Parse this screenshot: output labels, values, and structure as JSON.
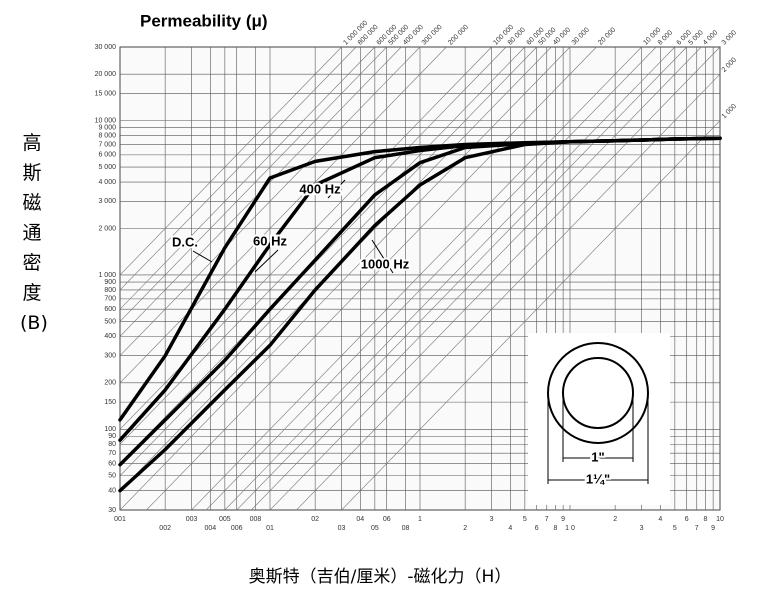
{
  "chart_data": {
    "type": "line",
    "log_x": true,
    "log_y": true,
    "grid": true,
    "title": "Permeability (μ)",
    "x_label": "奥斯特（吉伯/厘米）-磁化力（H）",
    "y_label": "高斯 磁通密度 (B)",
    "x": [
      0.001,
      0.002,
      0.005,
      0.01,
      0.02,
      0.05,
      0.1,
      0.2,
      0.5,
      1,
      2,
      5,
      10
    ],
    "series": [
      {
        "name": "D.C.",
        "color": "#000000",
        "values": [
          115,
          300,
          1500,
          4250,
          5440,
          6300,
          6700,
          7000,
          7200,
          7300,
          7400,
          7600,
          7700
        ]
      },
      {
        "name": "60 Hz",
        "color": "#000000",
        "values": [
          85,
          180,
          600,
          1570,
          3830,
          5750,
          6400,
          6900,
          7150,
          7300,
          7400,
          7600,
          7700
        ]
      },
      {
        "name": "400 Hz",
        "color": "#000000",
        "values": [
          59,
          115,
          280,
          600,
          1250,
          3300,
          5340,
          6700,
          7100,
          7300,
          7400,
          7600,
          7700
        ]
      },
      {
        "name": "1000 Hz",
        "color": "#000000",
        "values": [
          40,
          74,
          180,
          350,
          800,
          2090,
          3830,
          5750,
          7000,
          7300,
          7400,
          7600,
          7700
        ]
      }
    ],
    "xlim": [
      0.001,
      10
    ],
    "ylim": [
      30,
      30000
    ],
    "xticks": [
      {
        "value": 0.001,
        "label": "001"
      },
      {
        "value": 0.002,
        "label": "002"
      },
      {
        "value": 0.003,
        "label": "003"
      },
      {
        "value": 0.004,
        "label": "004"
      },
      {
        "value": 0.005,
        "label": "005"
      },
      {
        "value": 0.006,
        "label": "006"
      },
      {
        "value": 0.008,
        "label": "008"
      },
      {
        "value": 0.01,
        "label": "01"
      },
      {
        "value": 0.02,
        "label": "02"
      },
      {
        "value": 0.03,
        "label": "03"
      },
      {
        "value": 0.04,
        "label": "04"
      },
      {
        "value": 0.05,
        "label": "05"
      },
      {
        "value": 0.06,
        "label": "06"
      },
      {
        "value": 0.08,
        "label": "08"
      },
      {
        "value": 0.1,
        "label": "1"
      },
      {
        "value": 0.2,
        "label": "2"
      },
      {
        "value": 0.3,
        "label": "3"
      },
      {
        "value": 0.4,
        "label": "4"
      },
      {
        "value": 0.5,
        "label": "5"
      },
      {
        "value": 0.6,
        "label": "6"
      },
      {
        "value": 0.7,
        "label": "7"
      },
      {
        "value": 0.8,
        "label": "8"
      },
      {
        "value": 0.9,
        "label": "9"
      },
      {
        "value": 1,
        "label": "1 0"
      },
      2,
      3,
      4,
      5,
      6,
      7,
      8,
      9,
      10
    ],
    "yticks": [
      30,
      40,
      50,
      60,
      70,
      80,
      90,
      100,
      150,
      200,
      300,
      400,
      500,
      600,
      700,
      800,
      900,
      {
        "value": 1000,
        "label": "1 000"
      },
      {
        "value": 2000,
        "label": "2 000"
      },
      {
        "value": 3000,
        "label": "3 000"
      },
      {
        "value": 4000,
        "label": "4 000"
      },
      {
        "value": 5000,
        "label": "5 000"
      },
      {
        "value": 6000,
        "label": "6 000"
      },
      {
        "value": 7000,
        "label": "7 000"
      },
      {
        "value": 8000,
        "label": "8 000"
      },
      {
        "value": 9000,
        "label": "9 000"
      },
      {
        "value": 10000,
        "label": "10 000"
      },
      {
        "value": 15000,
        "label": "15 000"
      },
      {
        "value": 20000,
        "label": "20 000"
      },
      {
        "value": 30000,
        "label": "30 000"
      }
    ],
    "permeability_lines": [
      {
        "value": 1000000,
        "label": "1 000 000"
      },
      {
        "value": 800000,
        "label": "800 000"
      },
      {
        "value": 600000,
        "label": "600 000"
      },
      {
        "value": 500000,
        "label": "500 000"
      },
      {
        "value": 400000,
        "label": "400 000"
      },
      {
        "value": 300000,
        "label": "300 000"
      },
      {
        "value": 200000,
        "label": "200 000"
      },
      {
        "value": 100000,
        "label": "100 000"
      },
      {
        "value": 80000,
        "label": "80 000"
      },
      {
        "value": 60000,
        "label": "60 000"
      },
      {
        "value": 50000,
        "label": "50 000"
      },
      {
        "value": 40000,
        "label": "40 000"
      },
      {
        "value": 30000,
        "label": "30 000"
      },
      {
        "value": 20000,
        "label": "20 000"
      },
      {
        "value": 10000,
        "label": "10 000"
      },
      {
        "value": 8000,
        "label": "8 000"
      },
      {
        "value": 6000,
        "label": "6 000"
      },
      {
        "value": 5000,
        "label": "5 000"
      },
      {
        "value": 4000,
        "label": "4 000"
      },
      {
        "value": 3000,
        "label": "3 000"
      },
      {
        "value": 2000,
        "label": "2 000"
      },
      {
        "value": 1000,
        "label": "1 000"
      }
    ],
    "annotations": [
      "1\"",
      "1¼\""
    ]
  }
}
